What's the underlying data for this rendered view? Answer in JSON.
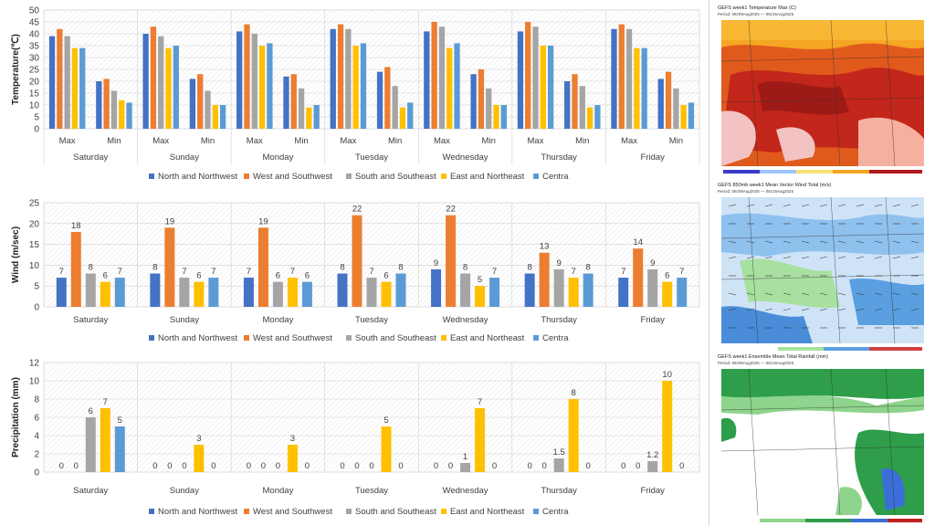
{
  "days": [
    "Saturday",
    "Sunday",
    "Monday",
    "Tuesday",
    "Wednesday",
    "Thursday",
    "Friday"
  ],
  "legend": [
    "North and Northwest",
    "West and Southwest",
    "South and Southeast",
    "East and Northeast",
    "Centra"
  ],
  "colors": [
    "#4472c4",
    "#ed7d31",
    "#a5a5a5",
    "#ffc000",
    "#5b9bd5"
  ],
  "chart_data": [
    {
      "type": "bar",
      "ylabel": "Temperature(℃)",
      "ylim": [
        0,
        50
      ],
      "yticks": [
        0,
        5,
        10,
        15,
        20,
        25,
        30,
        35,
        40,
        45,
        50
      ],
      "subcategories": [
        "Max",
        "Min"
      ],
      "categories": [
        "Saturday",
        "Sunday",
        "Monday",
        "Tuesday",
        "Wednesday",
        "Thursday",
        "Friday"
      ],
      "grid": true,
      "legend_position": "bottom",
      "series": [
        {
          "name": "North and Northwest",
          "max": [
            39,
            40,
            41,
            42,
            41,
            41,
            42
          ],
          "min": [
            20,
            21,
            22,
            24,
            23,
            20,
            21
          ]
        },
        {
          "name": "West and Southwest",
          "max": [
            42,
            43,
            44,
            44,
            45,
            45,
            44
          ],
          "min": [
            21,
            23,
            23,
            26,
            25,
            23,
            24
          ]
        },
        {
          "name": "South and Southeast",
          "max": [
            39,
            39,
            40,
            42,
            43,
            43,
            42
          ],
          "min": [
            16,
            16,
            17,
            18,
            17,
            18,
            17
          ]
        },
        {
          "name": "East and Northeast",
          "max": [
            34,
            34,
            35,
            35,
            34,
            35,
            34
          ],
          "min": [
            12,
            10,
            9,
            9,
            10,
            9,
            10
          ]
        },
        {
          "name": "Centra",
          "max": [
            34,
            35,
            36,
            36,
            36,
            35,
            34
          ],
          "min": [
            11,
            10,
            10,
            11,
            10,
            10,
            11
          ]
        }
      ]
    },
    {
      "type": "bar",
      "ylabel": "Wind (m/sec)",
      "ylim": [
        0,
        25
      ],
      "yticks": [
        0,
        5,
        10,
        15,
        20,
        25
      ],
      "categories": [
        "Saturday",
        "Sunday",
        "Monday",
        "Tuesday",
        "Wednesday",
        "Thursday",
        "Friday"
      ],
      "grid": true,
      "legend_position": "bottom",
      "series": [
        {
          "name": "North and Northwest",
          "values": [
            7,
            8,
            7,
            8,
            9,
            8,
            7
          ]
        },
        {
          "name": "West and Southwest",
          "values": [
            18,
            19,
            19,
            22,
            22,
            13,
            14
          ]
        },
        {
          "name": "South and Southeast",
          "values": [
            8,
            7,
            6,
            7,
            8,
            9,
            9
          ]
        },
        {
          "name": "East and Northeast",
          "values": [
            6,
            6,
            7,
            6,
            5,
            7,
            6
          ]
        },
        {
          "name": "Centra",
          "values": [
            7,
            7,
            6,
            8,
            7,
            8,
            7
          ]
        }
      ]
    },
    {
      "type": "bar",
      "ylabel": "Precipitation (mm)",
      "ylim": [
        0,
        12
      ],
      "yticks": [
        0,
        2,
        4,
        6,
        8,
        10,
        12
      ],
      "categories": [
        "Saturday",
        "Sunday",
        "Monday",
        "Tuesday",
        "Wednesday",
        "Thursday",
        "Friday"
      ],
      "grid": true,
      "legend_position": "bottom",
      "series": [
        {
          "name": "North and Northwest",
          "values": [
            0,
            0,
            0,
            0,
            0,
            0,
            0
          ]
        },
        {
          "name": "West and Southwest",
          "values": [
            0,
            0,
            0,
            0,
            0,
            0,
            0
          ]
        },
        {
          "name": "South and Southeast",
          "values": [
            6,
            0,
            0,
            0,
            1,
            1.5,
            1.2
          ]
        },
        {
          "name": "East and Northeast",
          "values": [
            7,
            3,
            3,
            5,
            7,
            8,
            10
          ]
        },
        {
          "name": "Centra",
          "values": [
            5,
            0,
            0,
            0,
            0,
            0,
            0
          ]
        }
      ]
    }
  ],
  "maps": [
    {
      "title": "GEFS week1 Temperature Max (C)",
      "period": "Period: 08z09Aug2025 — 06z15Aug2025"
    },
    {
      "title": "GEFS 850mb week1 Mean Vector Wind Total (m/s)",
      "period": "Period: 08z09Aug2025 — 06z15Aug2025"
    },
    {
      "title": "GEFS week1 Ensemble Mean Total Rainfall (mm)",
      "period": "Period: 08z09Aug2025 — 06z15Aug2025"
    }
  ]
}
